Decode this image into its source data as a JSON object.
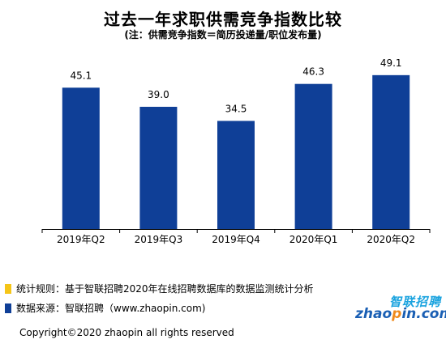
{
  "colors": {
    "bar": "#0f3f97",
    "axis": "#000000",
    "note1_marker": "#f5c518",
    "note2_marker": "#0f3f97"
  },
  "chart_data": {
    "type": "bar",
    "title": "过去一年求职供需竞争指数比较",
    "subtitle": "(注：供需竞争指数＝简历投递量/职位发布量)",
    "categories": [
      "2019年Q2",
      "2019年Q3",
      "2019年Q4",
      "2020年Q1",
      "2020年Q2"
    ],
    "values": [
      45.1,
      39.0,
      34.5,
      46.3,
      49.1
    ],
    "value_labels": [
      "45.1",
      "39.0",
      "34.5",
      "46.3",
      "49.1"
    ],
    "xlabel": "",
    "ylabel": "",
    "ylim": [
      0,
      55
    ],
    "grid": false,
    "legend": "none"
  },
  "notes": {
    "rule": "统计规则：基于智联招聘2020年在线招聘数据库的数据监测统计分析",
    "source": "数据来源：智联招聘（www.zhaopin.com)"
  },
  "logo": {
    "cn": "智联招聘",
    "en_prefix": "zhao",
    "en_dot": "p",
    "en_suffix": "in.com"
  },
  "copyright": "Copyright©2020 zhaopin all rights reserved"
}
